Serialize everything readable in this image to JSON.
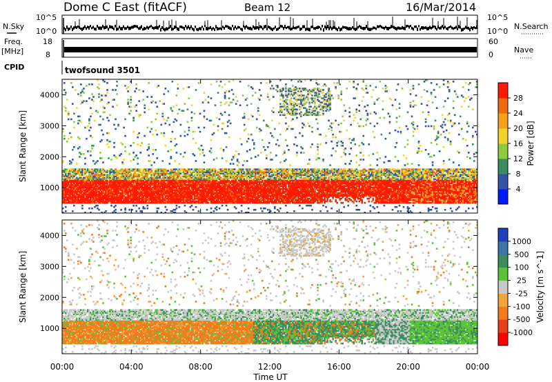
{
  "header": {
    "station": "Dome C East (fitACF)",
    "beam": "Beam 12",
    "date": "16/Mar/2014"
  },
  "params": {
    "nsky_label": "N.Sky",
    "nsearch_label": "N.Search",
    "freq_label": "Freq.",
    "freq_unit": "[MHz]",
    "nave_label": "Nave",
    "cpid_label": "CPID",
    "cpid_value": "twofsound 3501",
    "nsky_ticks": [
      "10^5",
      "10^0"
    ],
    "nsearch_ticks": [
      "10^5",
      "10^0"
    ],
    "freq_ticks": [
      "18",
      "8"
    ],
    "nave_ticks": [
      "60",
      "0"
    ]
  },
  "chart_data": [
    {
      "type": "heatmap",
      "name": "power",
      "ylabel": "Slant Range [km]",
      "ylim": [
        180,
        4500
      ],
      "yticks": [
        "1000",
        "2000",
        "3000",
        "4000"
      ],
      "colorbar_label": "Power [dB]",
      "colorbar_ticks": [
        "4",
        "8",
        "12",
        "16",
        "20",
        "24",
        "28"
      ],
      "colorbar_colors": [
        "#0019ff",
        "#3452a8",
        "#3b8c5e",
        "#8ccb3f",
        "#f5d22a",
        "#f7a11b",
        "#f06a10",
        "#ff1a00"
      ],
      "features": [
        {
          "time": "00:00-24:00",
          "range_km": "500-1300",
          "power_db": "28+",
          "note": "dense strong backscatter band"
        },
        {
          "time": "13:00-15:30",
          "range_km": "3400-4200",
          "power_db": "8-20",
          "note": "far-range patch"
        },
        {
          "time": "14:00-18:00",
          "range_km": "1300-1600",
          "power_db": "12-24",
          "note": "arched band edge"
        }
      ]
    },
    {
      "type": "heatmap",
      "name": "velocity",
      "ylabel": "Slant Range [km]",
      "ylim": [
        180,
        4500
      ],
      "yticks": [
        "1000",
        "2000",
        "3000",
        "4000"
      ],
      "colorbar_label": "Velocity [m s^-1]",
      "colorbar_ticks": [
        "1000",
        "500",
        "100",
        "25",
        "-25",
        "-100",
        "-500",
        "-1000"
      ],
      "colorbar_colors": [
        "#1f3fbf",
        "#3b76a8",
        "#3b8c5e",
        "#5cc23a",
        "#c8c8c8",
        "#f2a33a",
        "#f47b1e",
        "#e8401a",
        "#ff0000"
      ],
      "features": [
        {
          "time": "00:00-24:00",
          "range_km": "1100-1500",
          "velocity_ms": "-25 to 25",
          "note": "grey ground scatter band"
        },
        {
          "time": "00:00-11:00",
          "range_km": "500-1000",
          "velocity_ms": "-100 to -500",
          "note": "orange negative velocities"
        },
        {
          "time": "12:00-18:00",
          "range_km": "800-1500",
          "velocity_ms": "100 to 500",
          "note": "green positive velocities"
        },
        {
          "time": "20:00-24:00",
          "range_km": "500-1000",
          "velocity_ms": "25 to 100",
          "note": "bright green patch"
        }
      ]
    }
  ],
  "xaxis": {
    "label": "Time UT",
    "ticks": [
      "00:00",
      "04:00",
      "08:00",
      "12:00",
      "16:00",
      "20:00",
      "00:00"
    ]
  }
}
